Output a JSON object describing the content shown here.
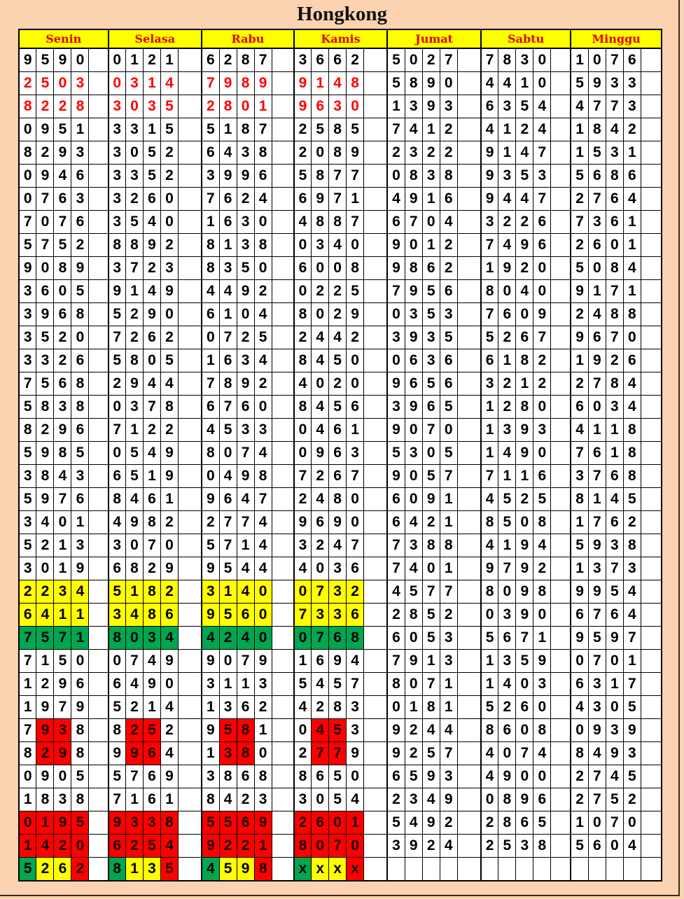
{
  "title": "Hongkong",
  "days": [
    "Senin",
    "Selasa",
    "Rabu",
    "Kamis",
    "Jumat",
    "Sabtu",
    "Minggu"
  ],
  "colors": {
    "header_bg": "#ffff00",
    "header_text": "#e00000",
    "red": "#ff0000",
    "yellow": "#ffff00",
    "green": "#00a650",
    "page_bg": "#fbd3b1"
  },
  "rows": [
    {
      "values": [
        "9590",
        "0121",
        "6287",
        "3662",
        "5027",
        "7830",
        "1076"
      ],
      "style": "none"
    },
    {
      "values": [
        "2503",
        "0314",
        "7989",
        "9148",
        "5890",
        "4410",
        "5933"
      ],
      "style": "red-text"
    },
    {
      "values": [
        "8228",
        "3035",
        "2801",
        "9630",
        "1393",
        "6354",
        "4773"
      ],
      "style": "red-text"
    },
    {
      "values": [
        "0951",
        "3315",
        "5187",
        "2585",
        "7412",
        "4124",
        "1842"
      ],
      "style": "none"
    },
    {
      "values": [
        "8293",
        "3052",
        "6438",
        "2089",
        "2322",
        "9147",
        "1531"
      ],
      "style": "none"
    },
    {
      "values": [
        "0946",
        "3352",
        "3996",
        "5877",
        "0838",
        "9353",
        "5686"
      ],
      "style": "none"
    },
    {
      "values": [
        "0763",
        "3260",
        "7624",
        "6971",
        "4916",
        "9447",
        "2764"
      ],
      "style": "none"
    },
    {
      "values": [
        "7076",
        "3540",
        "1630",
        "4887",
        "6704",
        "3226",
        "7361"
      ],
      "style": "none"
    },
    {
      "values": [
        "5752",
        "8892",
        "8138",
        "0340",
        "9012",
        "7496",
        "2601"
      ],
      "style": "none"
    },
    {
      "values": [
        "9089",
        "3723",
        "8350",
        "6008",
        "9862",
        "1920",
        "5084"
      ],
      "style": "none"
    },
    {
      "values": [
        "3605",
        "9149",
        "4492",
        "0225",
        "7956",
        "8040",
        "9171"
      ],
      "style": "none"
    },
    {
      "values": [
        "3968",
        "5290",
        "6104",
        "8029",
        "0353",
        "7609",
        "2488"
      ],
      "style": "none"
    },
    {
      "values": [
        "3520",
        "7262",
        "0725",
        "2442",
        "3935",
        "5267",
        "9670"
      ],
      "style": "none"
    },
    {
      "values": [
        "3326",
        "5805",
        "1634",
        "8450",
        "0636",
        "6182",
        "1926"
      ],
      "style": "none"
    },
    {
      "values": [
        "7568",
        "2944",
        "7892",
        "4020",
        "9656",
        "3212",
        "2784"
      ],
      "style": "none"
    },
    {
      "values": [
        "5838",
        "0378",
        "6760",
        "8456",
        "3965",
        "1280",
        "6034"
      ],
      "style": "none"
    },
    {
      "values": [
        "8296",
        "7122",
        "4533",
        "0461",
        "9070",
        "1393",
        "4118"
      ],
      "style": "none"
    },
    {
      "values": [
        "5985",
        "0549",
        "8074",
        "0963",
        "5305",
        "1490",
        "7618"
      ],
      "style": "none"
    },
    {
      "values": [
        "3843",
        "6519",
        "0498",
        "7267",
        "9057",
        "7116",
        "3768"
      ],
      "style": "none"
    },
    {
      "values": [
        "5976",
        "8461",
        "9647",
        "2480",
        "6091",
        "4525",
        "8145"
      ],
      "style": "none"
    },
    {
      "values": [
        "3401",
        "4982",
        "2774",
        "9690",
        "6421",
        "8508",
        "1762"
      ],
      "style": "none"
    },
    {
      "values": [
        "5213",
        "3070",
        "5714",
        "3247",
        "7388",
        "4194",
        "5938"
      ],
      "style": "none"
    },
    {
      "values": [
        "3019",
        "6829",
        "9544",
        "4036",
        "7401",
        "9792",
        "1373"
      ],
      "style": "none"
    },
    {
      "values": [
        "2234",
        "5182",
        "3140",
        "0732",
        "4577",
        "8098",
        "9954"
      ],
      "style": "yellow"
    },
    {
      "values": [
        "6411",
        "3486",
        "9560",
        "7336",
        "2852",
        "0390",
        "6764"
      ],
      "style": "yellow"
    },
    {
      "values": [
        "7571",
        "8034",
        "4240",
        "0768",
        "6053",
        "5671",
        "9597"
      ],
      "style": "green"
    },
    {
      "values": [
        "7150",
        "0749",
        "9079",
        "1694",
        "7913",
        "1359",
        "0701"
      ],
      "style": "none"
    },
    {
      "values": [
        "1296",
        "6490",
        "3113",
        "5457",
        "8071",
        "1403",
        "6317"
      ],
      "style": "none"
    },
    {
      "values": [
        "1979",
        "5214",
        "1362",
        "4283",
        "0181",
        "5260",
        "4305"
      ],
      "style": "none"
    },
    {
      "values": [
        "7938",
        "8252",
        "9581",
        "0453",
        "9244",
        "8608",
        "0939"
      ],
      "style": "red-middle"
    },
    {
      "values": [
        "8298",
        "9964",
        "1380",
        "2779",
        "9257",
        "4074",
        "8493"
      ],
      "style": "red-middle"
    },
    {
      "values": [
        "0905",
        "5769",
        "3868",
        "8650",
        "6593",
        "4900",
        "2745"
      ],
      "style": "none"
    },
    {
      "values": [
        "1838",
        "7161",
        "8423",
        "3054",
        "2349",
        "0896",
        "2752"
      ],
      "style": "none"
    },
    {
      "values": [
        "0195",
        "9338",
        "5569",
        "2601",
        "5492",
        "2865",
        "1070"
      ],
      "style": "red"
    },
    {
      "values": [
        "1420",
        "6254",
        "9221",
        "8070",
        "3924",
        "2538",
        "5604"
      ],
      "style": "red"
    },
    {
      "values": [
        "5262",
        "8135",
        "4598",
        "xxxx",
        "",
        "",
        ""
      ],
      "style": "green-yellow-yellow-red"
    }
  ]
}
